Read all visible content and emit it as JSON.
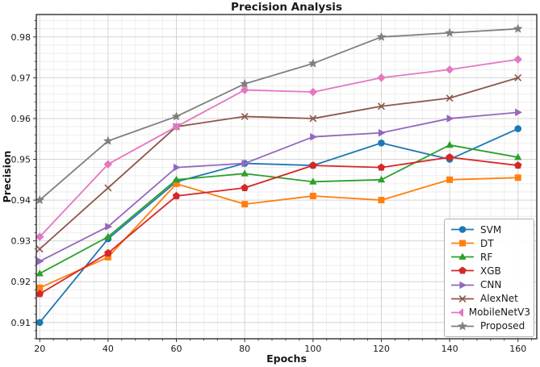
{
  "figure": {
    "title": "Precision Analysis",
    "xlabel": "Epochs",
    "ylabel": "Precision"
  },
  "chart_data": {
    "type": "line",
    "title": "Precision Analysis",
    "xlabel": "Epochs",
    "ylabel": "Precision",
    "x": [
      20,
      40,
      60,
      80,
      100,
      120,
      140,
      160
    ],
    "x_tick_labels": [
      "20",
      "40",
      "60",
      "80",
      "100",
      "120",
      "140",
      "160"
    ],
    "y_ticks": [
      0.91,
      0.92,
      0.93,
      0.94,
      0.95,
      0.96,
      0.97,
      0.98
    ],
    "y_tick_labels": [
      "0.91",
      "0.92",
      "0.93",
      "0.94",
      "0.95",
      "0.96",
      "0.97",
      "0.98"
    ],
    "xlim": [
      19.0,
      165.5
    ],
    "ylim": [
      0.906,
      0.9855
    ],
    "grid": true,
    "minor_grid": true,
    "x_minor_step": 4,
    "y_minor_step": 0.002,
    "legend_position": "lower right",
    "frame_color": "#2e2e2e",
    "major_grid_color": "#d4d4d4",
    "minor_grid_color": "#eaeaea",
    "series": [
      {
        "name": "SVM",
        "color": "#1f77b4",
        "marker": "circle",
        "values": [
          0.91,
          0.9305,
          0.9445,
          0.949,
          0.9485,
          0.954,
          0.95,
          0.9575
        ]
      },
      {
        "name": "DT",
        "color": "#ff7f0e",
        "marker": "square",
        "values": [
          0.9185,
          0.926,
          0.944,
          0.939,
          0.941,
          0.94,
          0.945,
          0.9455
        ]
      },
      {
        "name": "RF",
        "color": "#2ca02c",
        "marker": "triangle-up",
        "values": [
          0.922,
          0.931,
          0.945,
          0.9465,
          0.9445,
          0.945,
          0.9535,
          0.9505
        ]
      },
      {
        "name": "XGB",
        "color": "#d62728",
        "marker": "pentagon",
        "values": [
          0.917,
          0.927,
          0.941,
          0.943,
          0.9485,
          0.948,
          0.9505,
          0.9485
        ]
      },
      {
        "name": "CNN",
        "color": "#9467bd",
        "marker": "triangle-right",
        "values": [
          0.925,
          0.9335,
          0.948,
          0.949,
          0.9555,
          0.9565,
          0.96,
          0.9615
        ]
      },
      {
        "name": "AlexNet",
        "color": "#8c564b",
        "marker": "x",
        "values": [
          0.928,
          0.943,
          0.958,
          0.9605,
          0.96,
          0.963,
          0.965,
          0.97
        ]
      },
      {
        "name": "MobileNetV3",
        "color": "#e377c2",
        "marker": "diamond",
        "values": [
          0.931,
          0.9488,
          0.958,
          0.967,
          0.9665,
          0.97,
          0.972,
          0.9745
        ]
      },
      {
        "name": "Proposed",
        "color": "#7f7f7f",
        "marker": "star",
        "values": [
          0.94,
          0.9545,
          0.9605,
          0.9685,
          0.9735,
          0.98,
          0.981,
          0.982
        ]
      }
    ]
  }
}
